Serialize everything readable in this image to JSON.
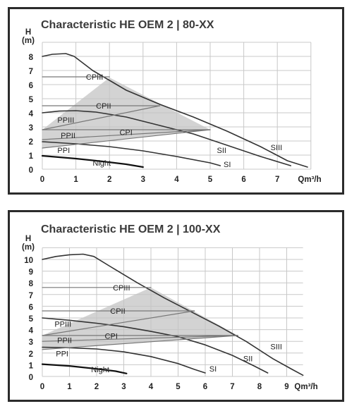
{
  "chart_data": [
    {
      "type": "line",
      "title": "Characteristic HE OEM 2 | 80-XX",
      "ylabel_top": "H",
      "ylabel_unit": "(m)",
      "xlabel": "Qm³/h",
      "xlim": [
        0,
        8
      ],
      "ylim": [
        0,
        9
      ],
      "xticks": [
        "0",
        "1",
        "2",
        "3",
        "4",
        "5",
        "6",
        "7"
      ],
      "yticks": [
        "0",
        "1",
        "2",
        "3",
        "4",
        "5",
        "6",
        "7",
        "8"
      ],
      "grid": true,
      "control_area": {
        "color": "#c4c4c4",
        "points": [
          [
            0,
            1.5
          ],
          [
            0,
            2.8
          ],
          [
            2,
            6.5
          ],
          [
            5,
            2.8
          ]
        ]
      },
      "series": [
        {
          "name": "SIII",
          "color": "#333333",
          "width": 1.6,
          "points": [
            [
              0,
              8.0
            ],
            [
              0.3,
              8.15
            ],
            [
              0.7,
              8.2
            ],
            [
              0.95,
              8.0
            ],
            [
              1.5,
              7.0
            ],
            [
              2.5,
              5.6
            ],
            [
              3.5,
              4.6
            ],
            [
              4.5,
              3.7
            ],
            [
              5.5,
              2.7
            ],
            [
              6.5,
              1.6
            ],
            [
              7.3,
              0.6
            ],
            [
              7.9,
              0.15
            ]
          ]
        },
        {
          "name": "SII",
          "color": "#333333",
          "width": 1.6,
          "points": [
            [
              0,
              4.0
            ],
            [
              0.5,
              4.12
            ],
            [
              1.0,
              4.15
            ],
            [
              1.6,
              4.05
            ],
            [
              2.5,
              3.7
            ],
            [
              3.5,
              3.1
            ],
            [
              4.5,
              2.5
            ],
            [
              5.5,
              1.7
            ],
            [
              6.5,
              0.9
            ],
            [
              7.4,
              0.25
            ]
          ]
        },
        {
          "name": "SI",
          "color": "#333333",
          "width": 1.6,
          "points": [
            [
              0,
              1.95
            ],
            [
              1,
              1.8
            ],
            [
              2,
              1.6
            ],
            [
              3,
              1.3
            ],
            [
              4,
              0.9
            ],
            [
              5,
              0.45
            ],
            [
              5.3,
              0.25
            ]
          ]
        },
        {
          "name": "Night",
          "color": "#111111",
          "width": 2.2,
          "points": [
            [
              0,
              0.95
            ],
            [
              1,
              0.75
            ],
            [
              1.8,
              0.55
            ],
            [
              2.5,
              0.35
            ],
            [
              3.0,
              0.15
            ]
          ]
        },
        {
          "name": "CPIII",
          "color": "#777777",
          "width": 1.2,
          "points": [
            [
              0,
              6.55
            ],
            [
              2,
              6.55
            ]
          ]
        },
        {
          "name": "CPII",
          "color": "#777777",
          "width": 1.2,
          "points": [
            [
              0,
              4.5
            ],
            [
              3.5,
              4.5
            ]
          ]
        },
        {
          "name": "CPI",
          "color": "#777777",
          "width": 1.2,
          "points": [
            [
              0,
              2.8
            ],
            [
              5,
              2.8
            ]
          ]
        },
        {
          "name": "PPIII",
          "color": "#777777",
          "width": 1.2,
          "points": [
            [
              0,
              2.8
            ],
            [
              3.5,
              4.5
            ]
          ]
        },
        {
          "name": "PPII",
          "color": "#777777",
          "width": 1.2,
          "points": [
            [
              0,
              2.1
            ],
            [
              5,
              2.8
            ]
          ]
        },
        {
          "name": "PPI",
          "color": "#777777",
          "width": 1.2,
          "points": [
            [
              0,
              1.5
            ],
            [
              5,
              2.8
            ]
          ]
        }
      ],
      "labels": [
        {
          "text": "CPIII",
          "x": 1.3,
          "y": 6.55
        },
        {
          "text": "CPII",
          "x": 1.6,
          "y": 4.5
        },
        {
          "text": "CPI",
          "x": 2.3,
          "y": 2.62
        },
        {
          "text": "PPIII",
          "x": 0.45,
          "y": 3.5
        },
        {
          "text": "PPII",
          "x": 0.55,
          "y": 2.4
        },
        {
          "text": "PPI",
          "x": 0.45,
          "y": 1.35
        },
        {
          "text": "Night",
          "x": 1.5,
          "y": 0.45
        },
        {
          "text": "SII",
          "x": 5.2,
          "y": 1.35
        },
        {
          "text": "SI",
          "x": 5.4,
          "y": 0.35
        },
        {
          "text": "SIII",
          "x": 6.8,
          "y": 1.55
        }
      ]
    },
    {
      "type": "line",
      "title": "Characteristic HE OEM 2 | 100-XX",
      "ylabel_top": "H",
      "ylabel_unit": "(m)",
      "xlabel": "Qm³/h",
      "xlim": [
        0,
        9.6
      ],
      "ylim": [
        0,
        11
      ],
      "xticks": [
        "0",
        "1",
        "2",
        "3",
        "4",
        "5",
        "6",
        "7",
        "8",
        "9"
      ],
      "yticks": [
        "0",
        "1",
        "2",
        "3",
        "4",
        "5",
        "6",
        "7",
        "8",
        "9",
        "10"
      ],
      "grid": true,
      "control_area": {
        "color": "#c4c4c4",
        "points": [
          [
            0,
            2.3
          ],
          [
            0,
            3.5
          ],
          [
            4,
            7.6
          ],
          [
            7.2,
            3.5
          ]
        ]
      },
      "series": [
        {
          "name": "SIII",
          "color": "#333333",
          "width": 1.6,
          "points": [
            [
              0,
              10.0
            ],
            [
              0.5,
              10.25
            ],
            [
              1.0,
              10.4
            ],
            [
              1.5,
              10.45
            ],
            [
              1.9,
              10.25
            ],
            [
              2.5,
              9.4
            ],
            [
              3.5,
              8.0
            ],
            [
              4.5,
              6.7
            ],
            [
              5.5,
              5.5
            ],
            [
              6.5,
              4.3
            ],
            [
              7.5,
              3.0
            ],
            [
              8.5,
              1.5
            ],
            [
              9.2,
              0.6
            ],
            [
              9.6,
              0.1
            ]
          ]
        },
        {
          "name": "SII",
          "color": "#333333",
          "width": 1.6,
          "points": [
            [
              0,
              5.0
            ],
            [
              1,
              4.8
            ],
            [
              2,
              4.55
            ],
            [
              3,
              4.25
            ],
            [
              4,
              3.85
            ],
            [
              5,
              3.4
            ],
            [
              6,
              2.7
            ],
            [
              7,
              1.8
            ],
            [
              7.8,
              0.9
            ],
            [
              8.3,
              0.3
            ]
          ]
        },
        {
          "name": "SI",
          "color": "#333333",
          "width": 1.6,
          "points": [
            [
              0,
              2.5
            ],
            [
              1,
              2.45
            ],
            [
              2,
              2.35
            ],
            [
              3,
              2.1
            ],
            [
              4,
              1.7
            ],
            [
              5,
              1.1
            ],
            [
              5.6,
              0.6
            ],
            [
              6.0,
              0.3
            ]
          ]
        },
        {
          "name": "Night",
          "color": "#111111",
          "width": 2.2,
          "points": [
            [
              0,
              1.05
            ],
            [
              1,
              0.9
            ],
            [
              2,
              0.65
            ],
            [
              2.7,
              0.45
            ],
            [
              3.1,
              0.25
            ]
          ]
        },
        {
          "name": "CPIII",
          "color": "#777777",
          "width": 1.2,
          "points": [
            [
              0,
              7.6
            ],
            [
              4,
              7.6
            ]
          ]
        },
        {
          "name": "CPII",
          "color": "#777777",
          "width": 1.2,
          "points": [
            [
              0,
              5.6
            ],
            [
              5.6,
              5.6
            ]
          ]
        },
        {
          "name": "CPI",
          "color": "#777777",
          "width": 1.2,
          "points": [
            [
              0,
              3.5
            ],
            [
              7.2,
              3.5
            ]
          ]
        },
        {
          "name": "PPIII",
          "color": "#777777",
          "width": 1.2,
          "points": [
            [
              0,
              3.5
            ],
            [
              5.6,
              5.6
            ]
          ]
        },
        {
          "name": "PPII",
          "color": "#777777",
          "width": 1.2,
          "points": [
            [
              0,
              3.0
            ],
            [
              7.2,
              3.5
            ]
          ]
        },
        {
          "name": "PPI",
          "color": "#777777",
          "width": 1.2,
          "points": [
            [
              0,
              2.3
            ],
            [
              7.2,
              3.5
            ]
          ]
        }
      ],
      "labels": [
        {
          "text": "CPIII",
          "x": 2.6,
          "y": 7.6
        },
        {
          "text": "CPII",
          "x": 2.5,
          "y": 5.6
        },
        {
          "text": "CPI",
          "x": 2.3,
          "y": 3.45
        },
        {
          "text": "PPIII",
          "x": 0.45,
          "y": 4.5
        },
        {
          "text": "PPII",
          "x": 0.55,
          "y": 3.1
        },
        {
          "text": "PPI",
          "x": 0.5,
          "y": 1.95
        },
        {
          "text": "Night",
          "x": 1.8,
          "y": 0.6
        },
        {
          "text": "SII",
          "x": 7.4,
          "y": 1.55
        },
        {
          "text": "SI",
          "x": 6.15,
          "y": 0.65
        },
        {
          "text": "SIII",
          "x": 8.4,
          "y": 2.55
        }
      ]
    }
  ]
}
